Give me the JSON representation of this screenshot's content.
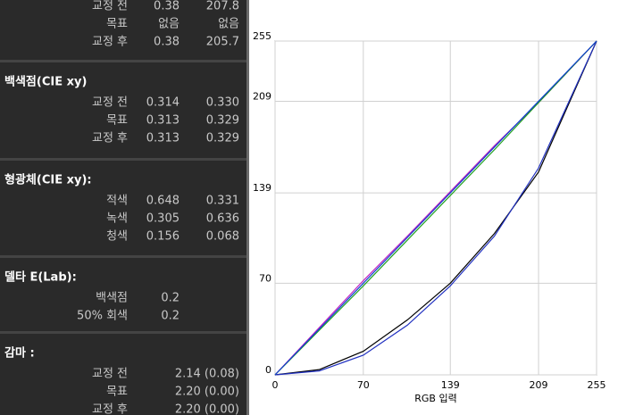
{
  "sections": [
    {
      "rows": [
        {
          "label": "교정 전",
          "values": [
            "0.38",
            "207.8"
          ]
        },
        {
          "label": "목표",
          "values": [
            "없음",
            "없음"
          ]
        },
        {
          "label": "교정 후",
          "values": [
            "0.38",
            "205.7"
          ]
        }
      ]
    },
    {
      "title": "백색점(CIE xy)",
      "rows": [
        {
          "label": "교정 전",
          "values": [
            "0.314",
            "0.330"
          ]
        },
        {
          "label": "목표",
          "values": [
            "0.313",
            "0.329"
          ]
        },
        {
          "label": "교정 후",
          "values": [
            "0.313",
            "0.329"
          ]
        }
      ]
    },
    {
      "title": "형광체(CIE xy):",
      "rows": [
        {
          "label": "적색",
          "values": [
            "0.648",
            "0.331"
          ]
        },
        {
          "label": "녹색",
          "values": [
            "0.305",
            "0.636"
          ]
        },
        {
          "label": "청색",
          "values": [
            "0.156",
            "0.068"
          ]
        }
      ]
    },
    {
      "title": "델타 E(Lab):",
      "rows": [
        {
          "label": "백색점",
          "values": [
            "0.2"
          ]
        },
        {
          "label": "50% 회색",
          "values": [
            "0.2"
          ]
        }
      ]
    },
    {
      "title": "감마 :",
      "rows": [
        {
          "label": "교정 전",
          "values": [
            "2.14 (0.08)"
          ]
        },
        {
          "label": "목표",
          "values": [
            "2.20 (0.00)"
          ]
        },
        {
          "label": "교정 후",
          "values": [
            "2.20 (0.00)"
          ]
        }
      ]
    }
  ],
  "chart_data": {
    "type": "line",
    "x_label": "RGB 입력",
    "x": [
      0,
      35,
      70,
      105,
      139,
      174,
      209,
      255
    ],
    "series": [
      {
        "color": "#000000",
        "values": [
          0,
          4,
          18,
          42,
          70,
          108,
          155,
          255
        ]
      },
      {
        "color": "#2030c0",
        "values": [
          0,
          3,
          15,
          38,
          68,
          106,
          158,
          255
        ]
      },
      {
        "color": "#c020c0",
        "values": [
          0,
          36,
          72,
          106,
          140,
          175,
          208,
          255
        ]
      },
      {
        "color": "#20a020",
        "values": [
          0,
          34,
          68,
          103,
          137,
          172,
          208,
          255
        ]
      },
      {
        "color": "#1040d0",
        "values": [
          0,
          35,
          70,
          105,
          139,
          174,
          209,
          255
        ]
      }
    ],
    "xlim": [
      0,
      255
    ],
    "ylim": [
      0,
      255
    ],
    "xticks": [
      0,
      70,
      139,
      209,
      255
    ],
    "yticks": [
      0,
      70,
      139,
      209,
      255
    ],
    "grid": true
  }
}
